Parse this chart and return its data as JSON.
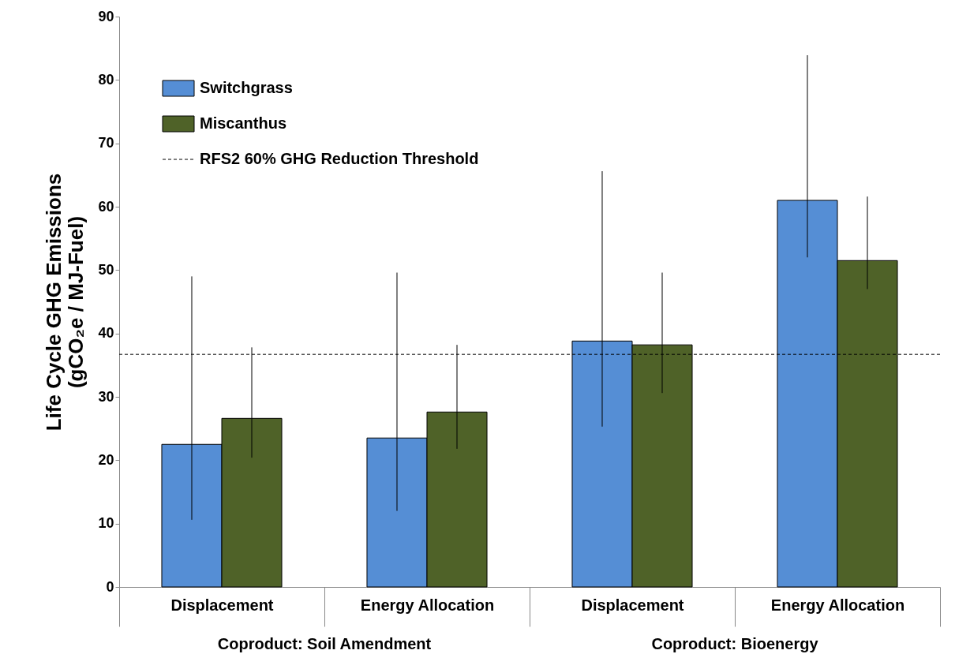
{
  "chart_data": {
    "type": "bar",
    "ylabel": "Life Cycle GHG Emissions\n(gCO₂e / MJ-Fuel)",
    "categories": [
      "Displacement",
      "Energy Allocation",
      "Displacement",
      "Energy Allocation"
    ],
    "series": [
      {
        "name": "Switchgrass",
        "color": "#558ed5",
        "values": [
          22.5,
          23.5,
          38.8,
          61.0
        ],
        "errors": [
          [
            10.6,
            49.0
          ],
          [
            12.0,
            49.6
          ],
          [
            25.3,
            65.6
          ],
          [
            52.0,
            83.9
          ]
        ]
      },
      {
        "name": "Miscanthus",
        "color": "#4f6228",
        "values": [
          26.6,
          27.6,
          38.2,
          51.5
        ],
        "errors": [
          [
            20.4,
            37.8
          ],
          [
            21.8,
            38.2
          ],
          [
            30.6,
            49.6
          ],
          [
            47.0,
            61.6
          ]
        ]
      }
    ],
    "ylim": [
      0,
      90
    ],
    "yticks": [
      0,
      10,
      20,
      30,
      40,
      50,
      60,
      70,
      80,
      90
    ],
    "ref_lines": [
      {
        "axis": "y",
        "value": 36.7,
        "label": "RFS2 60% GHG Reduction Threshold",
        "line_style": "dashed",
        "color": "#000000"
      }
    ],
    "annotations": [
      "Coproduct: Soil Amendment",
      "Coproduct: Bioenergy"
    ],
    "legend": "top left",
    "grid": false
  }
}
